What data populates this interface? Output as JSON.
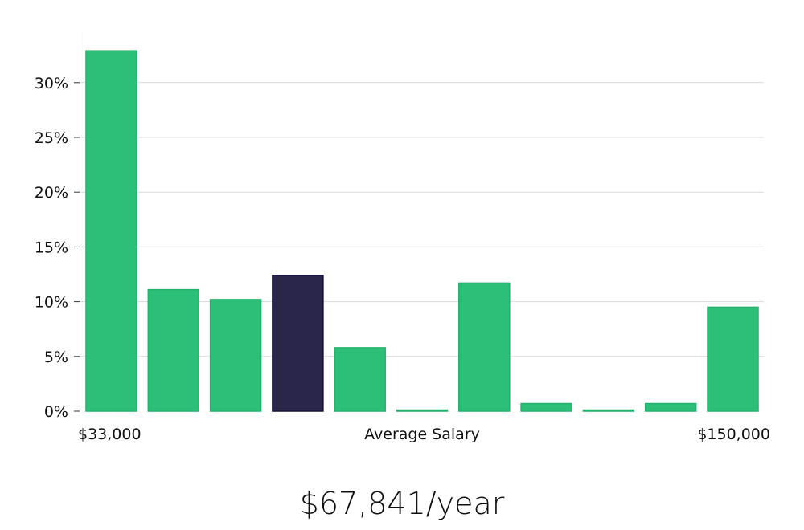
{
  "chart_data": {
    "type": "bar",
    "xlabel": "Average Salary",
    "x_start_label": "$33,000",
    "x_end_label": "$150,000",
    "ylim": [
      0,
      0.345
    ],
    "yticks": [
      0,
      0.05,
      0.1,
      0.15,
      0.2,
      0.25,
      0.3
    ],
    "ytick_labels": [
      "0%",
      "5%",
      "10%",
      "15%",
      "20%",
      "25%",
      "30%"
    ],
    "values": [
      0.329,
      0.111,
      0.102,
      0.124,
      0.058,
      0.001,
      0.117,
      0.007,
      0.001,
      0.007,
      0.095
    ],
    "highlight_index": 3,
    "grid": true,
    "colors": {
      "bar": "#2bbf78",
      "highlight": "#29264a",
      "highlight_edge": "#14123a",
      "grid": "#d9d9d9"
    }
  },
  "summary": {
    "salary_text": "$67,841/year"
  }
}
